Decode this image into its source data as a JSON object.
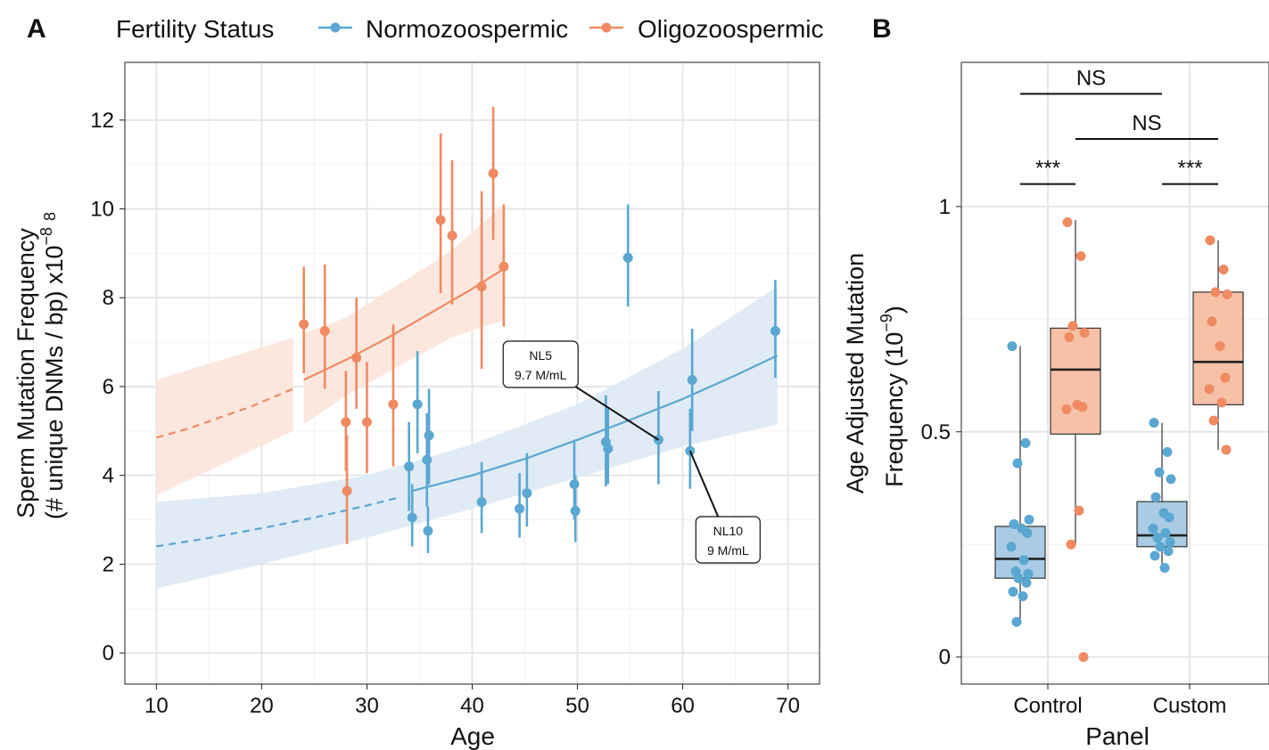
{
  "panel_a_letter": "A",
  "panel_b_letter": "B",
  "colors": {
    "normo": "#5aa7d1",
    "oligo": "#ef8a62",
    "normo_fill": "#dbe8f3",
    "oligo_fill": "#fbe3d8",
    "box_normo": "#a9cbe3",
    "box_oligo": "#f6c1a7"
  },
  "legend": {
    "title": "Fertility Status",
    "items": [
      "Normozoospermic",
      "Oligozoospermic"
    ]
  },
  "chart_data": [
    {
      "type": "scatter",
      "panel": "A",
      "xlabel": "Age",
      "ylabel_line1": "Sperm Mutation Frequency",
      "ylabel_line2_main": "(# unique DNMs / bp) x10",
      "ylabel_sup": "−8",
      "ylabel_sub": "8",
      "xlim": [
        7,
        73
      ],
      "ylim": [
        -0.7,
        13.3
      ],
      "xticks": [
        10,
        20,
        30,
        40,
        50,
        60,
        70
      ],
      "yticks": [
        0,
        2,
        4,
        6,
        8,
        10,
        12
      ],
      "grid": true,
      "series": [
        {
          "name": "Normozoospermic",
          "points": [
            {
              "x": 34.0,
              "y": 4.2,
              "lo": 3.2,
              "hi": 5.2
            },
            {
              "x": 34.3,
              "y": 3.05,
              "lo": 2.4,
              "hi": 3.8
            },
            {
              "x": 34.8,
              "y": 5.6,
              "lo": 4.5,
              "hi": 6.8
            },
            {
              "x": 35.7,
              "y": 4.35,
              "lo": 3.3,
              "hi": 5.4
            },
            {
              "x": 35.8,
              "y": 2.75,
              "lo": 2.25,
              "hi": 3.3
            },
            {
              "x": 35.9,
              "y": 4.9,
              "lo": 3.8,
              "hi": 5.95
            },
            {
              "x": 40.9,
              "y": 3.4,
              "lo": 2.7,
              "hi": 4.3
            },
            {
              "x": 44.5,
              "y": 3.25,
              "lo": 2.6,
              "hi": 4.05
            },
            {
              "x": 45.2,
              "y": 3.6,
              "lo": 2.85,
              "hi": 4.5
            },
            {
              "x": 49.7,
              "y": 3.8,
              "lo": 3.0,
              "hi": 4.8
            },
            {
              "x": 49.8,
              "y": 3.2,
              "lo": 2.5,
              "hi": 4.0
            },
            {
              "x": 52.7,
              "y": 4.75,
              "lo": 3.75,
              "hi": 5.8
            },
            {
              "x": 52.9,
              "y": 4.6,
              "lo": 3.8,
              "hi": 5.5
            },
            {
              "x": 54.8,
              "y": 8.9,
              "lo": 7.8,
              "hi": 10.1
            },
            {
              "x": 57.7,
              "y": 4.8,
              "lo": 3.8,
              "hi": 5.9
            },
            {
              "x": 60.7,
              "y": 4.55,
              "lo": 3.7,
              "hi": 5.5
            },
            {
              "x": 60.9,
              "y": 6.15,
              "lo": 5.0,
              "hi": 7.3
            },
            {
              "x": 68.8,
              "y": 7.25,
              "lo": 6.2,
              "hi": 8.4
            }
          ],
          "fit_dashed": [
            [
              10,
              2.4
            ],
            [
              15,
              2.59
            ],
            [
              20,
              2.81
            ],
            [
              25,
              3.05
            ],
            [
              30,
              3.32
            ],
            [
              33,
              3.5
            ]
          ],
          "fit_solid": [
            [
              34.3,
              3.65
            ],
            [
              40,
              4.0
            ],
            [
              45,
              4.37
            ],
            [
              50,
              4.8
            ],
            [
              55,
              5.25
            ],
            [
              60,
              5.72
            ],
            [
              65,
              6.25
            ],
            [
              69,
              6.7
            ]
          ],
          "band_outer": [
            [
              10,
              1.45,
              3.4
            ],
            [
              20,
              2.0,
              3.6
            ],
            [
              30,
              2.6,
              4.0
            ],
            [
              40,
              3.25,
              4.7
            ],
            [
              50,
              3.95,
              5.6
            ],
            [
              60,
              4.65,
              6.85
            ],
            [
              69,
              5.15,
              8.25
            ]
          ]
        },
        {
          "name": "Oligozoospermic",
          "points": [
            {
              "x": 24.0,
              "y": 7.4,
              "lo": 6.3,
              "hi": 8.7
            },
            {
              "x": 26.0,
              "y": 7.25,
              "lo": 5.95,
              "hi": 8.75
            },
            {
              "x": 28.0,
              "y": 5.2,
              "lo": 4.1,
              "hi": 6.35
            },
            {
              "x": 28.1,
              "y": 3.65,
              "lo": 2.45,
              "hi": 4.9
            },
            {
              "x": 29.0,
              "y": 6.65,
              "lo": 5.5,
              "hi": 8.0
            },
            {
              "x": 30.0,
              "y": 5.2,
              "lo": 4.05,
              "hi": 6.55
            },
            {
              "x": 32.5,
              "y": 5.6,
              "lo": 4.2,
              "hi": 7.4
            },
            {
              "x": 37.0,
              "y": 9.75,
              "lo": 8.1,
              "hi": 11.7
            },
            {
              "x": 38.1,
              "y": 9.4,
              "lo": 7.85,
              "hi": 11.1
            },
            {
              "x": 40.9,
              "y": 8.25,
              "lo": 6.4,
              "hi": 10.4
            },
            {
              "x": 42.0,
              "y": 10.8,
              "lo": 9.3,
              "hi": 12.3
            },
            {
              "x": 43.0,
              "y": 8.7,
              "lo": 7.35,
              "hi": 10.1
            }
          ],
          "fit_dashed": [
            [
              10,
              4.85
            ],
            [
              13,
              5.05
            ],
            [
              16,
              5.3
            ],
            [
              19,
              5.55
            ],
            [
              22,
              5.85
            ],
            [
              23,
              5.95
            ]
          ],
          "fit_solid": [
            [
              24,
              6.15
            ],
            [
              28,
              6.6
            ],
            [
              32,
              7.1
            ],
            [
              36,
              7.65
            ],
            [
              40,
              8.2
            ],
            [
              43,
              8.65
            ]
          ],
          "band_left": [
            [
              10,
              3.55,
              6.15
            ],
            [
              23,
              5.0,
              7.1
            ]
          ],
          "band_right": [
            [
              24,
              5.15,
              7.2
            ],
            [
              28,
              5.8,
              7.55
            ],
            [
              33,
              6.45,
              8.3
            ],
            [
              38,
              7.1,
              9.05
            ],
            [
              43,
              7.5,
              10.1
            ]
          ]
        }
      ],
      "annotations": [
        {
          "line1": "NL5",
          "line2": "9.7 M/mL",
          "target": [
            57.7,
            4.8
          ],
          "label_at": [
            46.5,
            6.5
          ]
        },
        {
          "line1": "NL10",
          "line2": "9 M/mL",
          "target": [
            60.7,
            4.55
          ],
          "label_at": [
            64.3,
            2.55
          ]
        }
      ]
    },
    {
      "type": "box",
      "panel": "B",
      "xlabel": "Panel",
      "ylabel_line1": "Age Adjusted Mutation",
      "ylabel_line2_main": "Frequency (10",
      "ylabel_sup": "−9",
      "ylabel_tail": ")",
      "categories": [
        "Control",
        "Custom"
      ],
      "ylim": [
        -0.06,
        1.32
      ],
      "yticks": [
        0,
        0.5,
        1
      ],
      "ytick_labels": [
        "0",
        "0.5",
        "1"
      ],
      "groups": [
        {
          "category": "Control",
          "series": "Normozoospermic",
          "box": {
            "q1": 0.175,
            "median": 0.218,
            "q3": 0.29,
            "whisker_lo": 0.078,
            "whisker_hi": 0.69
          },
          "points": [
            0.69,
            0.475,
            0.43,
            0.305,
            0.295,
            0.285,
            0.275,
            0.245,
            0.215,
            0.19,
            0.185,
            0.175,
            0.165,
            0.145,
            0.135,
            0.078
          ]
        },
        {
          "category": "Control",
          "series": "Oligozoospermic",
          "box": {
            "q1": 0.495,
            "median": 0.638,
            "q3": 0.73,
            "whisker_lo": 0.25,
            "whisker_hi": 0.97
          },
          "points": [
            0.965,
            0.89,
            0.735,
            0.72,
            0.71,
            0.56,
            0.555,
            0.55,
            0.325,
            0.25,
            0.0
          ]
        },
        {
          "category": "Custom",
          "series": "Normozoospermic",
          "box": {
            "q1": 0.245,
            "median": 0.27,
            "q3": 0.345,
            "whisker_lo": 0.198,
            "whisker_hi": 0.52
          },
          "points": [
            0.52,
            0.455,
            0.41,
            0.395,
            0.355,
            0.32,
            0.31,
            0.285,
            0.275,
            0.265,
            0.255,
            0.245,
            0.235,
            0.225,
            0.198
          ]
        },
        {
          "category": "Custom",
          "series": "Oligozoospermic",
          "box": {
            "q1": 0.56,
            "median": 0.655,
            "q3": 0.81,
            "whisker_lo": 0.46,
            "whisker_hi": 0.925
          },
          "points": [
            0.925,
            0.86,
            0.81,
            0.805,
            0.745,
            0.69,
            0.62,
            0.595,
            0.565,
            0.525,
            0.46
          ]
        }
      ],
      "significance": [
        {
          "label": "NS",
          "from": "Control-Normozoospermic",
          "to": "Custom-Normozoospermic",
          "y": 1.25
        },
        {
          "label": "NS",
          "from": "Control-Oligozoospermic",
          "to": "Custom-Oligozoospermic",
          "y": 1.15
        },
        {
          "label": "***",
          "from": "Control-Normozoospermic",
          "to": "Control-Oligozoospermic",
          "y": 1.05
        },
        {
          "label": "***",
          "from": "Custom-Normozoospermic",
          "to": "Custom-Oligozoospermic",
          "y": 1.05
        }
      ]
    }
  ]
}
